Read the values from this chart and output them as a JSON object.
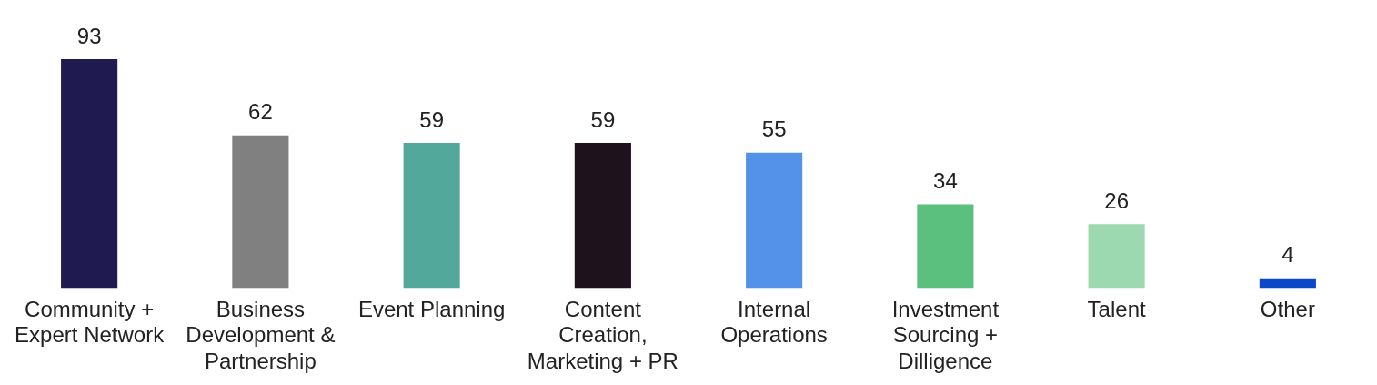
{
  "chart_data": {
    "type": "bar",
    "categories": [
      "Community + Expert Network",
      "Business Development & Partnership",
      "Event Planning",
      "Content Creation, Marketing + PR",
      "Internal Operations",
      "Investment Sourcing + Dilligence",
      "Talent",
      "Other"
    ],
    "values": [
      93,
      62,
      59,
      59,
      55,
      34,
      26,
      4
    ],
    "colors": [
      "#1f1a4f",
      "#808080",
      "#52a89a",
      "#1e121d",
      "#5491e8",
      "#5bbf7e",
      "#9dd9b0",
      "#0a48c8"
    ],
    "tick_labels": "x",
    "grid": false,
    "legend": false,
    "data_labels": true
  }
}
